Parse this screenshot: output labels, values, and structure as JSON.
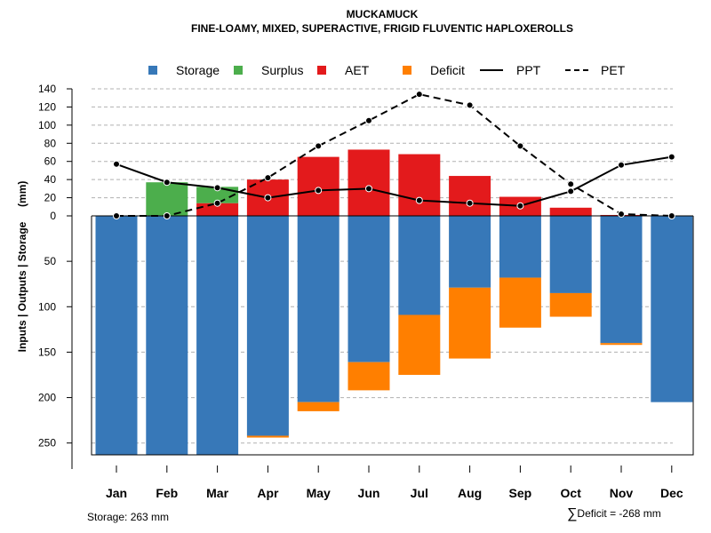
{
  "chart_data": {
    "type": "bar",
    "title": "MUCKAMUCK",
    "subtitle": "FINE-LOAMY, MIXED, SUPERACTIVE, FRIGID FLUVENTIC HAPLOXEROLLS",
    "ylabel": "Inputs | Outputs | Storage     (mm)",
    "categories": [
      "Jan",
      "Feb",
      "Mar",
      "Apr",
      "May",
      "Jun",
      "Jul",
      "Aug",
      "Sep",
      "Oct",
      "Nov",
      "Dec"
    ],
    "y_upper_ticks": [
      140,
      120,
      100,
      80,
      60,
      40,
      20,
      0
    ],
    "y_lower_ticks": [
      50,
      100,
      150,
      200,
      250
    ],
    "ylim_upper": [
      0,
      140
    ],
    "ylim_lower": [
      0,
      263
    ],
    "legend": [
      {
        "label": "Storage",
        "kind": "swatch",
        "color": "#3778b8"
      },
      {
        "label": "Surplus",
        "kind": "swatch",
        "color": "#4cae4c"
      },
      {
        "label": "AET",
        "kind": "swatch",
        "color": "#e31a1c"
      },
      {
        "label": "Deficit",
        "kind": "swatch",
        "color": "#ff7f00"
      },
      {
        "label": "PPT",
        "kind": "line"
      },
      {
        "label": "PET",
        "kind": "dashed"
      }
    ],
    "series": [
      {
        "name": "Storage",
        "color": "#3778b8",
        "values": [
          263,
          263,
          263,
          242,
          205,
          161,
          109,
          79,
          68,
          85,
          140,
          205
        ]
      },
      {
        "name": "Surplus",
        "color": "#4cae4c",
        "values": [
          0,
          37,
          18,
          0,
          0,
          0,
          0,
          0,
          0,
          0,
          0,
          0
        ]
      },
      {
        "name": "AET",
        "color": "#e31a1c",
        "values": [
          0,
          0,
          14,
          40,
          65,
          73,
          68,
          44,
          21,
          9,
          1,
          0
        ]
      },
      {
        "name": "Deficit",
        "color": "#ff7f00",
        "values": [
          0,
          0,
          0,
          2,
          10,
          31,
          66,
          78,
          55,
          26,
          2,
          0
        ]
      },
      {
        "name": "PPT",
        "color": "#000000",
        "values": [
          57,
          37,
          31,
          20,
          28,
          30,
          17,
          14,
          11,
          27,
          56,
          65
        ]
      },
      {
        "name": "PET",
        "color": "#000000",
        "values": [
          0,
          0,
          14,
          42,
          77,
          105,
          134,
          122,
          77,
          35,
          2,
          0
        ]
      }
    ]
  },
  "notes": {
    "storage": "Storage: 263 mm",
    "deficit_symbol": "∑",
    "deficit": "Deficit = -268 mm"
  }
}
